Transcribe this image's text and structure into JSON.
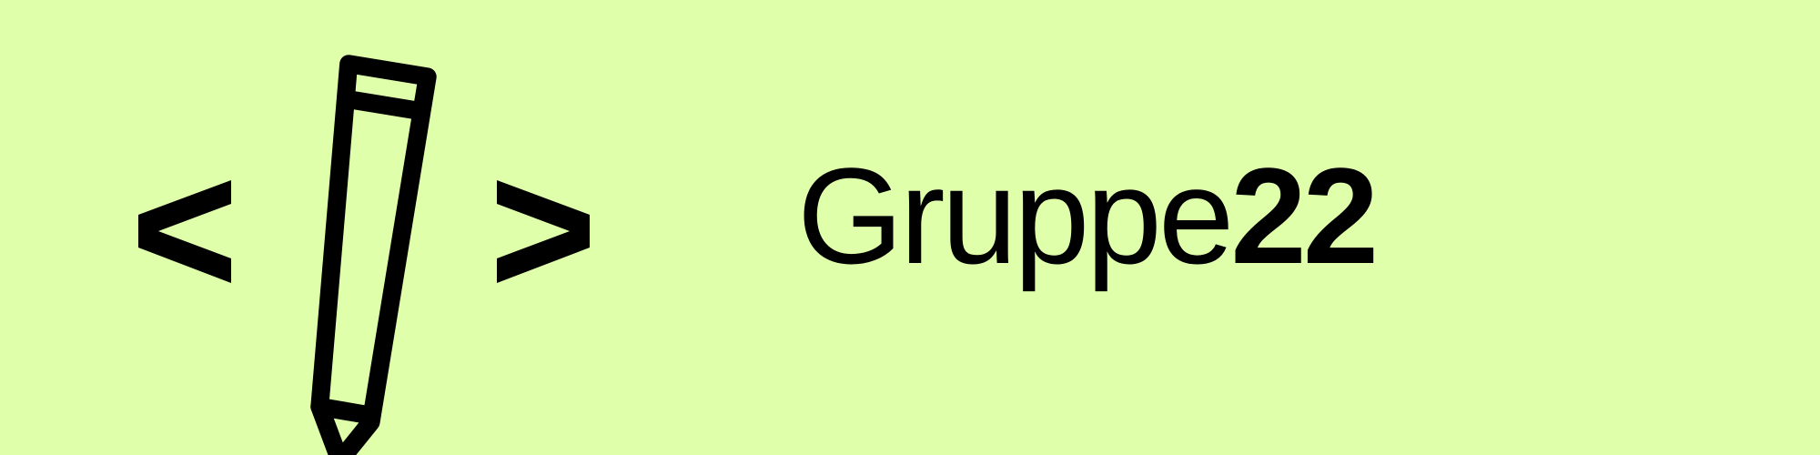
{
  "logo": {
    "name_text": "Gruppe",
    "number_text": "22",
    "colors": {
      "background": "#E0FFAB",
      "foreground": "#000000"
    },
    "icons": [
      "left-angle-bracket-icon",
      "pencil-icon",
      "right-angle-bracket-icon"
    ]
  }
}
